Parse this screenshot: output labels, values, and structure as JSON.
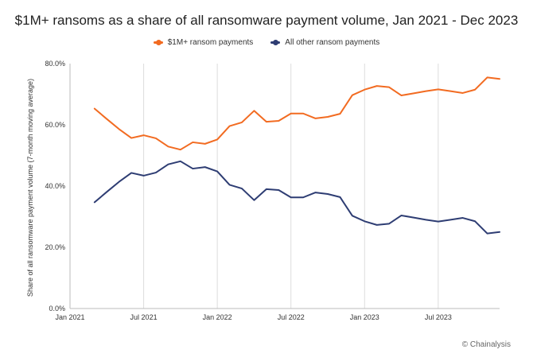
{
  "chart_data": {
    "type": "line",
    "title": "$1M+ ransoms as a share of all ransomware payment volume, Jan 2021 - Dec 2023",
    "ylabel": "Share of all ransomware payment volume (7-month moving average)",
    "xlabel": "",
    "ylim": [
      0,
      80
    ],
    "y_ticks": [
      "0.0%",
      "20.0%",
      "40.0%",
      "60.0%",
      "80.0%"
    ],
    "y_tick_values": [
      0,
      20,
      40,
      60,
      80
    ],
    "x_ticks": [
      "Jan 2021",
      "Jul 2021",
      "Jan 2022",
      "Jul 2022",
      "Jan 2023",
      "Jul 2023"
    ],
    "x_tick_months": [
      0,
      6,
      12,
      18,
      24,
      30
    ],
    "x_months_range": [
      0,
      35
    ],
    "grid": "vertical",
    "legend_position": "top-center",
    "x_month_index": [
      2,
      3,
      4,
      5,
      6,
      7,
      8,
      9,
      10,
      11,
      12,
      13,
      14,
      15,
      16,
      17,
      18,
      19,
      20,
      21,
      22,
      23,
      24,
      25,
      26,
      27,
      28,
      29,
      30,
      31,
      32,
      33,
      34,
      35
    ],
    "series": [
      {
        "name": "$1M+ ransom payments",
        "color": "#F26B21",
        "values": [
          65.3,
          61.9,
          58.6,
          55.7,
          56.6,
          55.6,
          52.9,
          51.9,
          54.3,
          53.8,
          55.2,
          59.6,
          60.8,
          64.6,
          61.0,
          61.3,
          63.7,
          63.7,
          62.1,
          62.6,
          63.6,
          69.7,
          71.5,
          72.7,
          72.3,
          69.6,
          70.3,
          71.0,
          71.6,
          71.0,
          70.4,
          71.5,
          75.5,
          75.0
        ]
      },
      {
        "name": "All other ransom payments",
        "color": "#2E3D73",
        "values": [
          34.7,
          38.1,
          41.4,
          44.3,
          43.4,
          44.4,
          47.1,
          48.1,
          45.7,
          46.2,
          44.8,
          40.4,
          39.2,
          35.4,
          39.0,
          38.7,
          36.3,
          36.3,
          37.9,
          37.4,
          36.4,
          30.3,
          28.5,
          27.3,
          27.7,
          30.4,
          29.7,
          29.0,
          28.4,
          29.0,
          29.6,
          28.5,
          24.5,
          25.0
        ]
      }
    ]
  },
  "source_label": "© Chainalysis"
}
